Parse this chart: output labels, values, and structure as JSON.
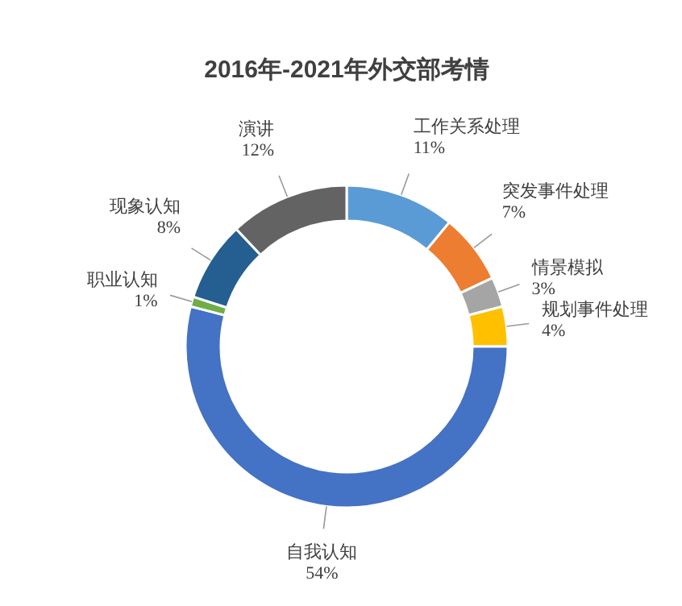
{
  "chart_data": {
    "type": "donut",
    "title": "2016年-2021年外交部考情",
    "categories": [
      "工作关系处理",
      "突发事件处理",
      "情景模拟",
      "规划事件处理",
      "自我认知",
      "职业认知",
      "现象认知",
      "演讲"
    ],
    "values": [
      11,
      7,
      3,
      4,
      54,
      1,
      8,
      12
    ],
    "colors": [
      "#5b9bd5",
      "#ed7d31",
      "#a5a5a5",
      "#ffc000",
      "#4472c4",
      "#70ad47",
      "#255e91",
      "#636363"
    ],
    "value_labels": [
      "11%",
      "7%",
      "3%",
      "4%",
      "54%",
      "1%",
      "8%",
      "12%"
    ]
  }
}
